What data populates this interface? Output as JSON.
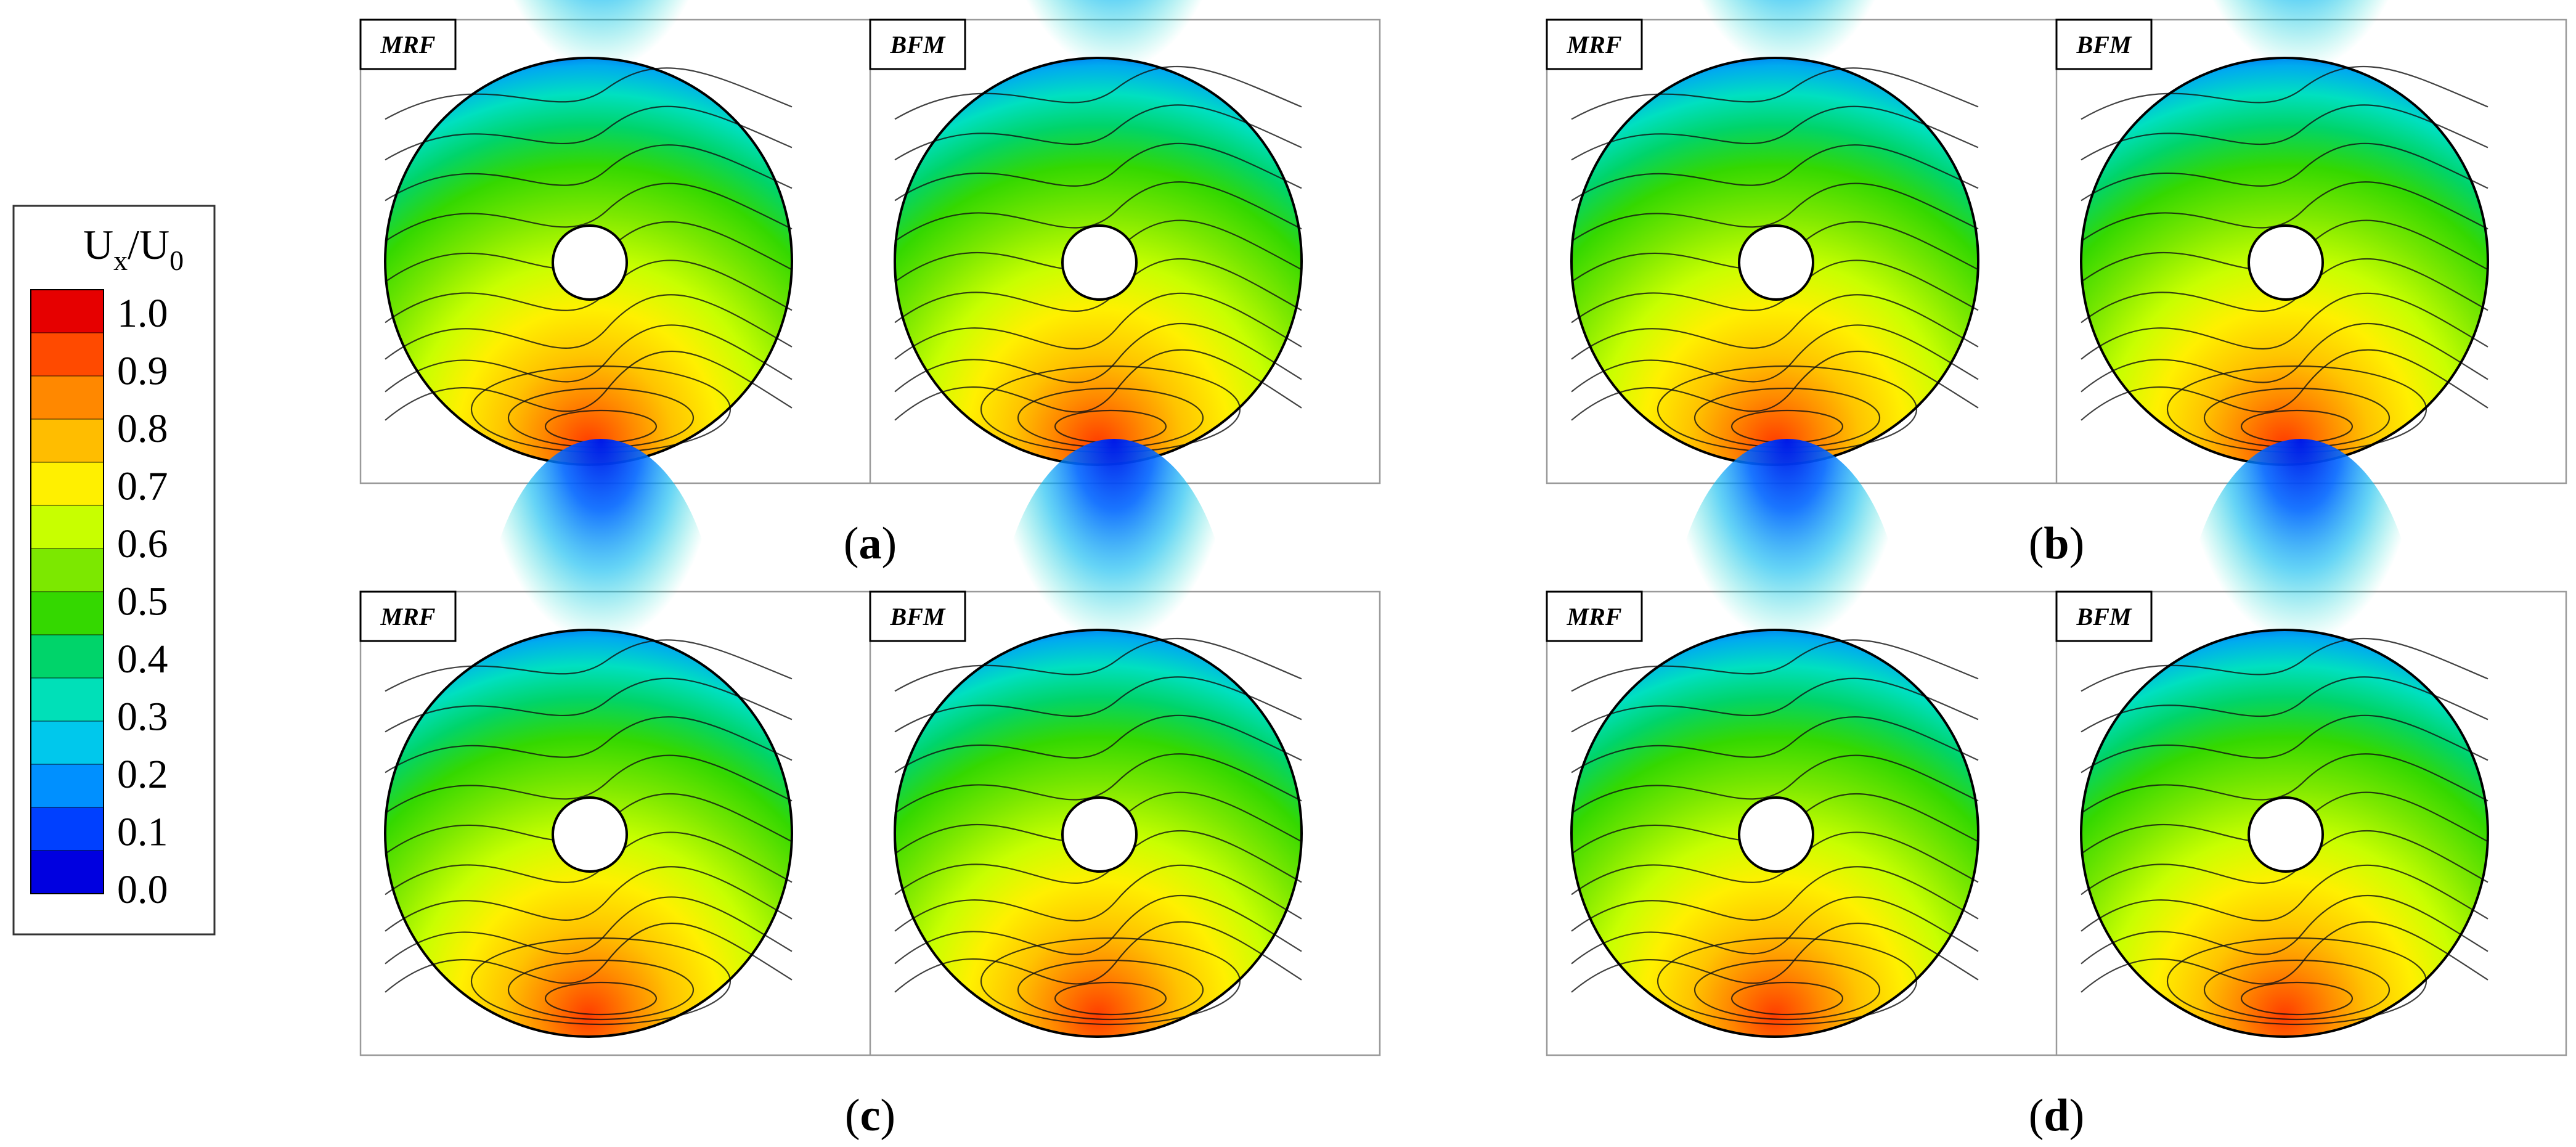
{
  "legend": {
    "title_main": "U",
    "title_sub1": "x",
    "title_mid": "/U",
    "title_sub2": "0",
    "ticks": [
      "1.0",
      "0.9",
      "0.8",
      "0.7",
      "0.6",
      "0.5",
      "0.4",
      "0.3",
      "0.2",
      "0.1",
      "0.0"
    ],
    "colors": [
      "#e60000",
      "#ff4a00",
      "#ff8800",
      "#ffbd00",
      "#fff000",
      "#c8ff00",
      "#7ce800",
      "#34d800",
      "#00d46a",
      "#00e0b8",
      "#00c8ec",
      "#0090ff",
      "#0040ff",
      "#0000e0"
    ]
  },
  "panels": [
    {
      "caption_open": "(",
      "caption_letter": "a",
      "caption_close": ")",
      "left_label": "MRF",
      "right_label": "BFM"
    },
    {
      "caption_open": "(",
      "caption_letter": "b",
      "caption_close": ")",
      "left_label": "MRF",
      "right_label": "BFM"
    },
    {
      "caption_open": "(",
      "caption_letter": "c",
      "caption_close": ")",
      "left_label": "MRF",
      "right_label": "BFM"
    },
    {
      "caption_open": "(",
      "caption_letter": "d",
      "caption_close": ")",
      "left_label": "MRF",
      "right_label": "BFM"
    }
  ]
}
